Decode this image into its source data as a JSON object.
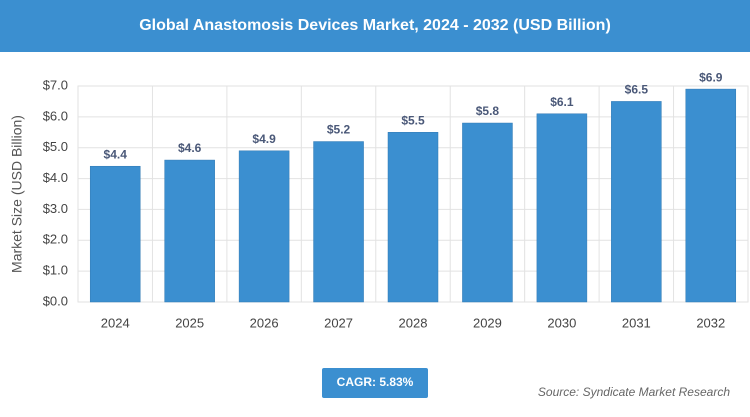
{
  "chart_data": {
    "type": "bar",
    "title": "Global Anastomosis Devices Market, 2024 - 2032 (USD Billion)",
    "y_label": "Market Size (USD Billion)",
    "categories": [
      "2024",
      "2025",
      "2026",
      "2027",
      "2028",
      "2029",
      "2030",
      "2031",
      "2032"
    ],
    "values": [
      4.4,
      4.6,
      4.9,
      5.2,
      5.5,
      5.8,
      6.1,
      6.5,
      6.9
    ],
    "value_labels": [
      "$4.4",
      "$4.6",
      "$4.9",
      "$5.2",
      "$5.5",
      "$5.8",
      "$6.1",
      "$6.5",
      "$6.9"
    ],
    "color": "#3b8fd0",
    "ylim": [
      0,
      7
    ],
    "yticks": [
      {
        "value": 0,
        "label": "$0.0"
      },
      {
        "value": 1,
        "label": "$1.0"
      },
      {
        "value": 2,
        "label": "$2.0"
      },
      {
        "value": 3,
        "label": "$3.0"
      },
      {
        "value": 4,
        "label": "$4.0"
      },
      {
        "value": 5,
        "label": "$5.0"
      },
      {
        "value": 6,
        "label": "$6.0"
      },
      {
        "value": 7,
        "label": "$7.0"
      }
    ],
    "grid": true,
    "cagr": "CAGR: 5.83%",
    "source": "Source: Syndicate Market Research"
  }
}
